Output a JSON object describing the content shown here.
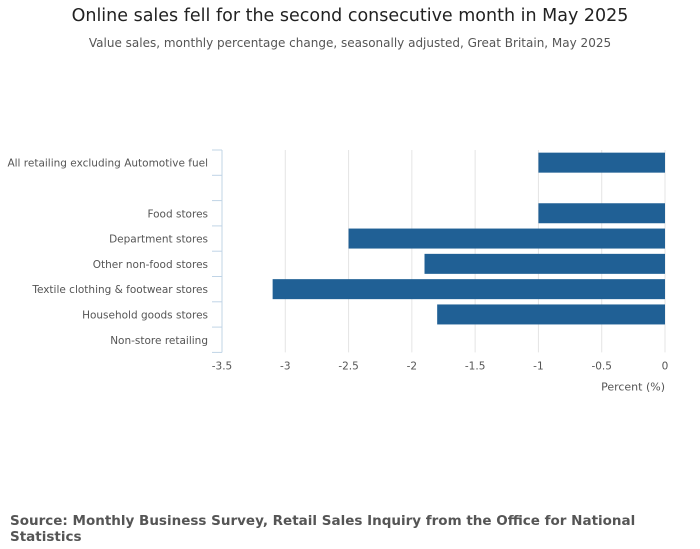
{
  "chart_data": {
    "type": "bar",
    "orientation": "horizontal",
    "title": "Online sales fell for the second consecutive month in May 2025",
    "subtitle": "Value sales, monthly percentage change, seasonally adjusted, Great Britain, May 2025",
    "categories": [
      "All retailing excluding Automotive fuel",
      "",
      "Food stores",
      "Department stores",
      "Other non-food stores",
      "Textile clothing & footwear stores",
      "Household goods stores",
      "Non-store retailing"
    ],
    "values": [
      -1.0,
      null,
      -1.0,
      -2.5,
      -1.9,
      -3.1,
      -1.8,
      null
    ],
    "xlabel": "Percent (%)",
    "ylabel": "",
    "xlim": [
      -3.5,
      0
    ],
    "xticks": [
      -3.5,
      -3,
      -2.5,
      -2,
      -1.5,
      -1,
      -0.5,
      0
    ],
    "xtick_labels": [
      "-3.5",
      "-3",
      "-2.5",
      "-2",
      "-1.5",
      "-1",
      "-0.5",
      "0"
    ],
    "grid": true,
    "bar_color": "#206095",
    "source": "Source: Monthly Business Survey, Retail Sales Inquiry from the Office for National Statistics"
  }
}
